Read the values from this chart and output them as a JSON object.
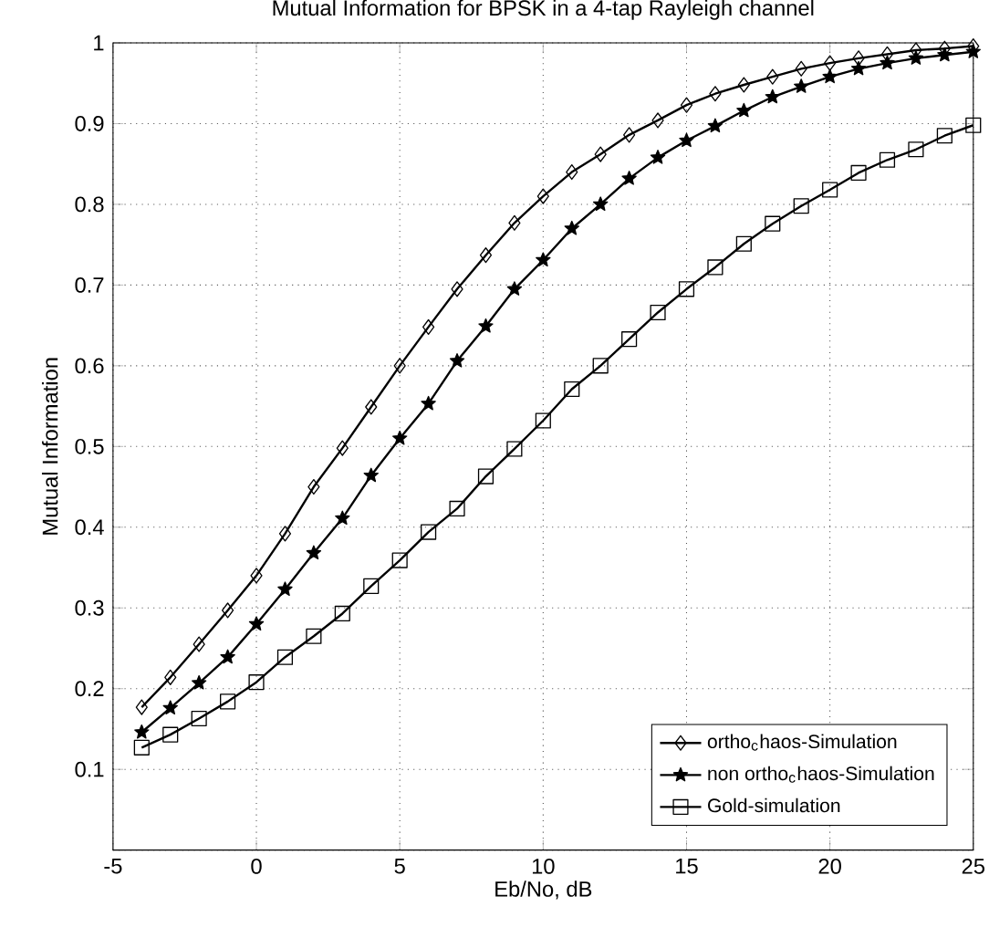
{
  "chart_data": {
    "type": "line",
    "title": "Mutual Information for BPSK  in a 4-tap Rayleigh channel",
    "xlabel": "Eb/No, dB",
    "ylabel": "Mutual Information",
    "x": [
      -4,
      -3,
      -2,
      -1,
      0,
      1,
      2,
      3,
      4,
      5,
      6,
      7,
      8,
      9,
      10,
      11,
      12,
      13,
      14,
      15,
      16,
      17,
      18,
      19,
      20,
      21,
      22,
      23,
      24,
      25
    ],
    "series": [
      {
        "name": "ortho$_{c}$haos-Simulation",
        "color": "#000000",
        "marker": "diamond",
        "values": [
          0.177,
          0.214,
          0.255,
          0.297,
          0.34,
          0.392,
          0.45,
          0.498,
          0.549,
          0.6,
          0.648,
          0.695,
          0.737,
          0.777,
          0.81,
          0.84,
          0.862,
          0.886,
          0.904,
          0.923,
          0.937,
          0.948,
          0.958,
          0.968,
          0.975,
          0.981,
          0.986,
          0.991,
          0.993,
          0.996
        ]
      },
      {
        "name": "non ortho$_{c}$haos-Simulation",
        "color": "#000000",
        "marker": "star",
        "values": [
          0.146,
          0.176,
          0.207,
          0.239,
          0.28,
          0.323,
          0.368,
          0.411,
          0.464,
          0.51,
          0.553,
          0.606,
          0.649,
          0.695,
          0.731,
          0.77,
          0.8,
          0.832,
          0.858,
          0.879,
          0.897,
          0.916,
          0.933,
          0.946,
          0.958,
          0.968,
          0.975,
          0.981,
          0.985,
          0.989
        ]
      },
      {
        "name": "Gold-simulation",
        "color": "#000000",
        "marker": "square",
        "values": [
          0.127,
          0.143,
          0.163,
          0.184,
          0.208,
          0.239,
          0.265,
          0.293,
          0.327,
          0.359,
          0.394,
          0.423,
          0.463,
          0.497,
          0.532,
          0.571,
          0.6,
          0.633,
          0.666,
          0.695,
          0.722,
          0.751,
          0.776,
          0.798,
          0.818,
          0.839,
          0.855,
          0.868,
          0.885,
          0.898
        ]
      }
    ],
    "xlim": [
      -5,
      25
    ],
    "ylim": [
      0,
      1
    ],
    "xticks": [
      -5,
      0,
      5,
      10,
      15,
      20,
      25
    ],
    "yticks": [
      {
        "value": 0,
        "label": null
      },
      0.1,
      0.2,
      0.3,
      0.4,
      0.5,
      0.6,
      0.7,
      0.8,
      0.9,
      1
    ],
    "grid": true,
    "legend": "bottom right",
    "line_style": "solid"
  }
}
